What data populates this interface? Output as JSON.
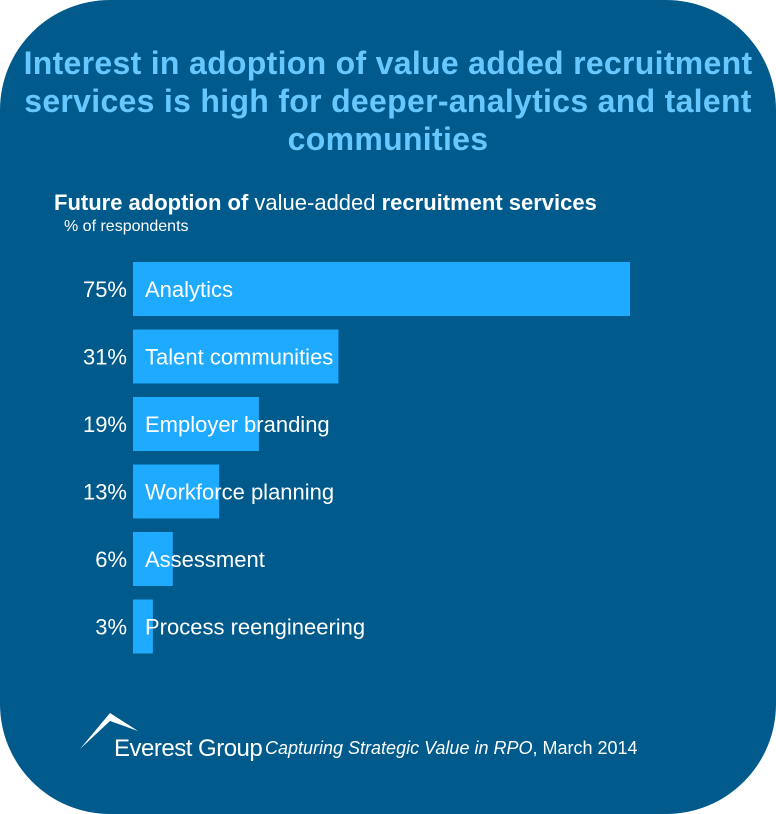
{
  "headline": "Interest in adoption of value added recruitment services is high for deeper-analytics and talent communities",
  "chart_data": {
    "type": "bar",
    "orientation": "horizontal",
    "title_parts": [
      "Future adoption of",
      " value-added ",
      "recruitment services"
    ],
    "ylabel": "% of respondents",
    "categories": [
      "Analytics",
      "Talent communities",
      "Employer branding",
      "Workforce planning",
      "Assessment",
      "Process reengineering"
    ],
    "values": [
      75,
      31,
      19,
      13,
      6,
      3
    ],
    "value_labels": [
      "75%",
      "31%",
      "19%",
      "13%",
      "6%",
      "3%"
    ],
    "xlim": [
      0,
      100
    ],
    "grid": false,
    "bar_color": "#1eaaff"
  },
  "footer": {
    "logo_text": "Everest Group",
    "source_title": "Capturing Strategic Value in RPO",
    "source_date": ", March 2014"
  },
  "colors": {
    "background": "#005a8c",
    "headline": "#66c8ff",
    "text": "#ffffff"
  }
}
